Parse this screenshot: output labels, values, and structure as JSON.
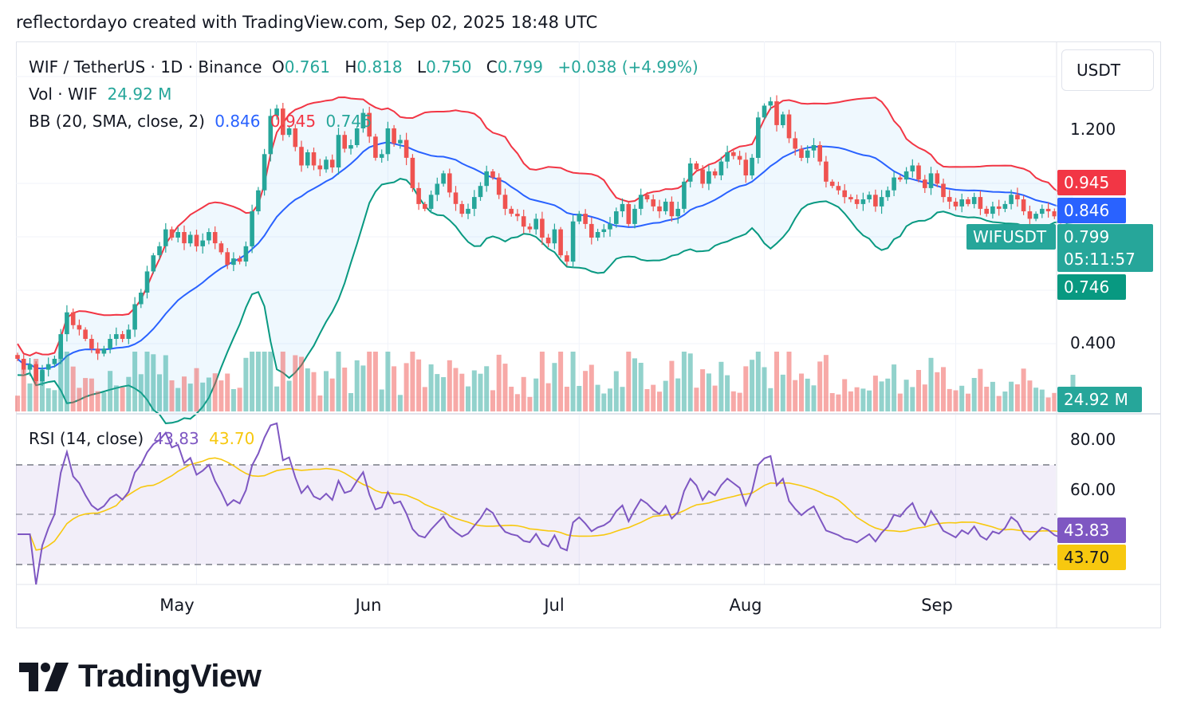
{
  "header_text": "reflectordayo created with TradingView.com, Sep 02, 2025 18:48 UTC",
  "currency": "USDT",
  "legend": {
    "symbol": "WIF / TetherUS · 1D · Binance",
    "o_label": "O",
    "o_value": "0.761",
    "h_label": "H",
    "h_value": "0.818",
    "l_label": "L",
    "l_value": "0.750",
    "c_label": "C",
    "c_value": "0.799",
    "change": "+0.038 (+4.99%)",
    "vol_label": "Vol · WIF",
    "vol_value": "24.92 M",
    "bb_label": "BB (20, SMA, close, 2)",
    "bb_basis": "0.846",
    "bb_upper": "0.945",
    "bb_lower": "0.746",
    "rsi_label": "RSI (14, close)",
    "rsi_value": "43.83",
    "rsi_ma": "43.70"
  },
  "price_axis": {
    "ticks": [
      "1.200",
      "0.400"
    ]
  },
  "rsi_axis": {
    "ticks": [
      "80.00",
      "60.00"
    ]
  },
  "price_tags": {
    "upper": "0.945",
    "basis": "0.846",
    "symbol": "WIFUSDT",
    "last": "0.799",
    "countdown": "05:11:57",
    "lower": "0.746",
    "volume": "24.92 M",
    "rsi": "43.83",
    "rsi_ma": "43.70"
  },
  "x_axis": [
    "May",
    "Jun",
    "Jul",
    "Aug",
    "Sep"
  ],
  "colors": {
    "up": "#26a69a",
    "down": "#ef5350",
    "bb_basis": "#2962ff",
    "bb_upper": "#f23645",
    "bb_lower": "#089981",
    "rsi": "#7e57c2",
    "rsi_ma": "#f7c80f"
  },
  "brand": "TradingView",
  "chart_data": {
    "type": "candlestick",
    "price_scale": "log",
    "closes": [
      0.37,
      0.35,
      0.36,
      0.33,
      0.35,
      0.36,
      0.37,
      0.42,
      0.47,
      0.44,
      0.43,
      0.41,
      0.39,
      0.38,
      0.39,
      0.41,
      0.42,
      0.41,
      0.43,
      0.49,
      0.52,
      0.58,
      0.63,
      0.66,
      0.72,
      0.69,
      0.71,
      0.67,
      0.7,
      0.66,
      0.68,
      0.71,
      0.67,
      0.64,
      0.6,
      0.62,
      0.61,
      0.66,
      0.79,
      0.88,
      1.06,
      1.29,
      1.34,
      1.17,
      1.21,
      1.1,
      1.0,
      1.07,
      1.0,
      0.98,
      1.03,
      0.99,
      1.17,
      1.09,
      1.11,
      1.21,
      1.31,
      1.16,
      1.04,
      1.06,
      1.21,
      1.12,
      1.14,
      1.04,
      0.89,
      0.82,
      0.8,
      0.86,
      0.91,
      0.96,
      0.87,
      0.82,
      0.78,
      0.8,
      0.85,
      0.9,
      0.97,
      0.94,
      0.86,
      0.8,
      0.78,
      0.77,
      0.73,
      0.72,
      0.76,
      0.69,
      0.67,
      0.72,
      0.63,
      0.61,
      0.75,
      0.78,
      0.74,
      0.69,
      0.71,
      0.72,
      0.74,
      0.79,
      0.82,
      0.74,
      0.8,
      0.86,
      0.84,
      0.81,
      0.79,
      0.83,
      0.77,
      0.8,
      0.92,
      1.01,
      0.98,
      0.91,
      0.97,
      0.95,
      1.02,
      1.07,
      1.05,
      1.03,
      0.95,
      1.04,
      1.28,
      1.36,
      1.39,
      1.23,
      1.3,
      1.15,
      1.09,
      1.04,
      1.08,
      1.11,
      1.02,
      0.92,
      0.9,
      0.88,
      0.85,
      0.84,
      0.82,
      0.84,
      0.86,
      0.81,
      0.85,
      0.88,
      0.94,
      0.93,
      0.97,
      1.0,
      0.93,
      0.89,
      0.96,
      0.91,
      0.85,
      0.83,
      0.81,
      0.84,
      0.82,
      0.85,
      0.8,
      0.78,
      0.81,
      0.8,
      0.82,
      0.86,
      0.84,
      0.79,
      0.76,
      0.78,
      0.8,
      0.79,
      0.77,
      0.76,
      0.76,
      0.8
    ],
    "current": {
      "open": 0.761,
      "high": 0.818,
      "low": 0.75,
      "close": 0.799,
      "change": 0.038,
      "change_pct": 4.99
    },
    "volume_last": "24.92 M",
    "bollinger": {
      "length": 20,
      "basis": 0.846,
      "upper": 0.945,
      "lower": 0.746
    },
    "rsi": {
      "length": 14,
      "value": 43.83,
      "ma": 43.7,
      "bands": [
        70,
        50,
        30
      ]
    },
    "y_ticks": [
      1.2,
      0.4
    ],
    "rsi_ticks": [
      80,
      60
    ],
    "x_labels": [
      "May",
      "Jun",
      "Jul",
      "Aug",
      "Sep"
    ],
    "x_label_index": [
      29,
      60,
      91,
      121,
      152
    ]
  }
}
